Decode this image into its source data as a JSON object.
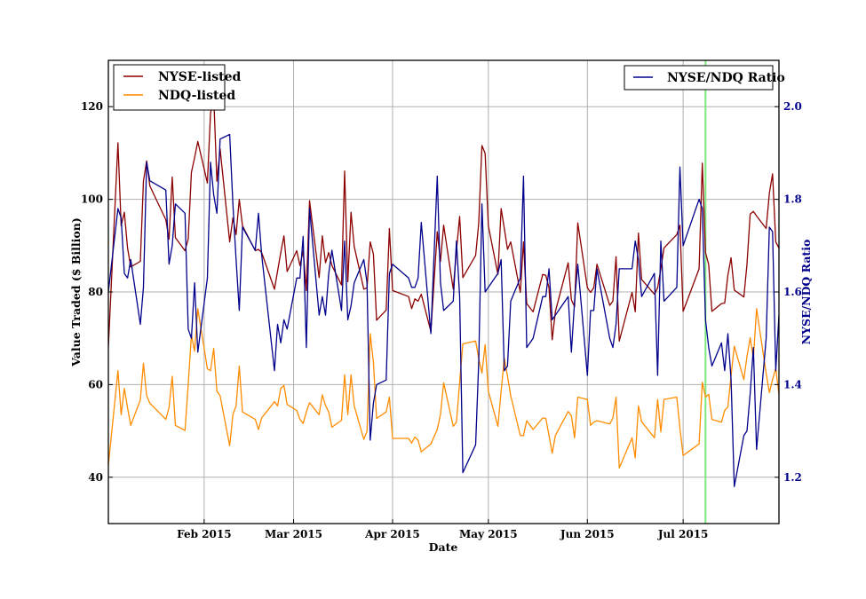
{
  "chart_data": {
    "type": "line",
    "title": "",
    "xlabel": "Date",
    "ylabel": "Value Traded ($ Billion)",
    "ylabel_right": "NYSE/NDQ Ratio",
    "xlim": [
      "2015-01-02",
      "2015-07-31"
    ],
    "ylim": [
      30,
      130
    ],
    "ylim_right": [
      1.1,
      2.1
    ],
    "grid": true,
    "x_ticks": [
      {
        "date": "2015-02-01",
        "label": "Feb 2015"
      },
      {
        "date": "2015-03-01",
        "label": "Mar 2015"
      },
      {
        "date": "2015-04-01",
        "label": "Apr 2015"
      },
      {
        "date": "2015-05-01",
        "label": "May 2015"
      },
      {
        "date": "2015-06-01",
        "label": "Jun 2015"
      },
      {
        "date": "2015-07-01",
        "label": "Jul 2015"
      }
    ],
    "y_ticks": [
      "40",
      "60",
      "80",
      "100",
      "120"
    ],
    "y_ticks_right": [
      "1.2",
      "1.4",
      "1.6",
      "1.8",
      "2.0"
    ],
    "vertical_marker": {
      "date": "2015-07-08",
      "color": "#7ee87e"
    },
    "legend_left": {
      "placement": "top-left",
      "entries": [
        "NYSE-listed",
        "NDQ-listed"
      ]
    },
    "legend_right": {
      "placement": "top-right",
      "entries": [
        "NYSE/NDQ Ratio"
      ]
    },
    "x": [
      "2015-01-02",
      "2015-01-05",
      "2015-01-06",
      "2015-01-07",
      "2015-01-08",
      "2015-01-09",
      "2015-01-12",
      "2015-01-13",
      "2015-01-14",
      "2015-01-15",
      "2015-01-20",
      "2015-01-21",
      "2015-01-22",
      "2015-01-23",
      "2015-01-26",
      "2015-01-27",
      "2015-01-28",
      "2015-01-29",
      "2015-01-30",
      "2015-02-02",
      "2015-02-03",
      "2015-02-04",
      "2015-02-05",
      "2015-02-06",
      "2015-02-09",
      "2015-02-10",
      "2015-02-11",
      "2015-02-12",
      "2015-02-13",
      "2015-02-17",
      "2015-02-18",
      "2015-02-19",
      "2015-02-23",
      "2015-02-24",
      "2015-02-25",
      "2015-02-26",
      "2015-02-27",
      "2015-03-02",
      "2015-03-03",
      "2015-03-04",
      "2015-03-05",
      "2015-03-06",
      "2015-03-09",
      "2015-03-10",
      "2015-03-11",
      "2015-03-12",
      "2015-03-13",
      "2015-03-16",
      "2015-03-17",
      "2015-03-18",
      "2015-03-19",
      "2015-03-20",
      "2015-03-23",
      "2015-03-24",
      "2015-03-25",
      "2015-03-26",
      "2015-03-27",
      "2015-03-30",
      "2015-03-31",
      "2015-04-01",
      "2015-04-06",
      "2015-04-07",
      "2015-04-08",
      "2015-04-09",
      "2015-04-10",
      "2015-04-13",
      "2015-04-15",
      "2015-04-16",
      "2015-04-17",
      "2015-04-20",
      "2015-04-21",
      "2015-04-22",
      "2015-04-23",
      "2015-04-27",
      "2015-04-28",
      "2015-04-29",
      "2015-04-30",
      "2015-05-01",
      "2015-05-04",
      "2015-05-05",
      "2015-05-06",
      "2015-05-07",
      "2015-05-08",
      "2015-05-11",
      "2015-05-12",
      "2015-05-13",
      "2015-05-15",
      "2015-05-18",
      "2015-05-19",
      "2015-05-20",
      "2015-05-21",
      "2015-05-22",
      "2015-05-26",
      "2015-05-27",
      "2015-05-28",
      "2015-05-29",
      "2015-06-01",
      "2015-06-02",
      "2015-06-03",
      "2015-06-04",
      "2015-06-08",
      "2015-06-09",
      "2015-06-10",
      "2015-06-11",
      "2015-06-15",
      "2015-06-16",
      "2015-06-17",
      "2015-06-18",
      "2015-06-22",
      "2015-06-23",
      "2015-06-24",
      "2015-06-25",
      "2015-06-29",
      "2015-06-30",
      "2015-07-01",
      "2015-07-06",
      "2015-07-07",
      "2015-07-08",
      "2015-07-09",
      "2015-07-10",
      "2015-07-13",
      "2015-07-14",
      "2015-07-15",
      "2015-07-16",
      "2015-07-17",
      "2015-07-20",
      "2015-07-21",
      "2015-07-22",
      "2015-07-23",
      "2015-07-24",
      "2015-07-27",
      "2015-07-28",
      "2015-07-29",
      "2015-07-30",
      "2015-07-31"
    ],
    "series": [
      {
        "name": "NYSE-listed",
        "axis": "left",
        "color": "#8b0000",
        "values": [
          68.1,
          112.2,
          94.3,
          97.2,
          89.5,
          85.4,
          86.6,
          103.9,
          108.3,
          102.9,
          95.6,
          91.4,
          104.8,
          91.7,
          88.9,
          91.4,
          105.8,
          109.0,
          112.5,
          103.5,
          118.5,
          122.4,
          103.9,
          110.9,
          90.8,
          96.0,
          92.4,
          100.0,
          94.3,
          88.9,
          89.2,
          88.5,
          80.6,
          84.5,
          88.5,
          92.1,
          84.4,
          88.9,
          85.7,
          88.9,
          80.3,
          99.7,
          83.1,
          92.1,
          86.3,
          88.5,
          85.7,
          81.5,
          106.1,
          82.2,
          97.2,
          89.8,
          80.6,
          80.9,
          90.8,
          88.2,
          73.9,
          76.1,
          93.7,
          80.3,
          79.0,
          76.4,
          78.5,
          78.0,
          79.5,
          71.5,
          93.0,
          86.6,
          94.4,
          80.6,
          88.9,
          96.3,
          83.1,
          87.9,
          94.9,
          111.6,
          109.9,
          94.3,
          83.8,
          98.0,
          93.7,
          89.2,
          90.8,
          79.9,
          90.8,
          77.5,
          75.7,
          83.8,
          83.6,
          80.9,
          69.7,
          75.8,
          86.3,
          78.3,
          76.8,
          94.9,
          80.9,
          79.9,
          80.9,
          86.0,
          77.1,
          78.0,
          87.6,
          69.4,
          79.9,
          75.7,
          92.7,
          82.7,
          79.5,
          80.9,
          85.0,
          89.5,
          92.4,
          94.4,
          75.8,
          85.0,
          107.8,
          88.5,
          85.9,
          75.8,
          77.5,
          77.6,
          83.6,
          87.4,
          80.4,
          78.9,
          86.0,
          96.8,
          97.4,
          96.4,
          93.7,
          101.3,
          105.5,
          90.8,
          89.5
        ]
      },
      {
        "name": "NDQ-listed",
        "axis": "left",
        "color": "#ff8c00",
        "values": [
          42.6,
          63.0,
          53.5,
          59.2,
          55.0,
          51.2,
          56.7,
          64.6,
          57.6,
          56.0,
          52.5,
          55.0,
          61.8,
          51.2,
          50.1,
          60.0,
          70.7,
          67.2,
          76.4,
          63.4,
          63.0,
          67.8,
          58.6,
          57.6,
          46.8,
          53.5,
          55.4,
          64.0,
          54.1,
          52.5,
          50.3,
          52.8,
          56.3,
          55.4,
          59.2,
          59.8,
          55.7,
          54.4,
          52.5,
          51.6,
          54.1,
          56.1,
          53.5,
          57.8,
          55.5,
          54.1,
          50.8,
          52.3,
          62.1,
          53.5,
          62.1,
          55.4,
          48.2,
          49.9,
          71.0,
          64.9,
          52.7,
          54.1,
          57.3,
          48.4,
          48.4,
          47.4,
          48.7,
          48.0,
          45.5,
          47.2,
          50.3,
          53.5,
          60.4,
          51.0,
          51.9,
          60.5,
          68.8,
          69.4,
          65.6,
          62.5,
          68.6,
          58.6,
          51.0,
          58.6,
          65.7,
          61.8,
          57.6,
          49.0,
          49.0,
          52.2,
          50.3,
          52.8,
          52.7,
          49.0,
          45.2,
          49.0,
          54.2,
          53.3,
          48.5,
          57.3,
          56.8,
          51.2,
          51.9,
          52.2,
          51.5,
          52.8,
          57.3,
          42.0,
          48.5,
          44.2,
          55.4,
          52.0,
          48.5,
          56.8,
          49.8,
          56.8,
          57.3,
          50.6,
          44.7,
          47.2,
          60.5,
          57.3,
          57.9,
          52.5,
          51.9,
          54.4,
          55.2,
          62.0,
          68.3,
          61.1,
          66.1,
          70.1,
          65.6,
          76.4,
          62.4,
          58.3,
          61.1,
          63.5,
          57.9
        ]
      },
      {
        "name": "NYSE/NDQ Ratio",
        "axis": "right",
        "color": "#00008b",
        "values": [
          1.6,
          1.78,
          1.76,
          1.64,
          1.63,
          1.67,
          1.53,
          1.61,
          1.88,
          1.84,
          1.82,
          1.66,
          1.7,
          1.79,
          1.77,
          1.52,
          1.5,
          1.62,
          1.47,
          1.63,
          1.88,
          1.81,
          1.77,
          1.93,
          1.94,
          1.79,
          1.67,
          1.56,
          1.74,
          1.69,
          1.77,
          1.68,
          1.43,
          1.53,
          1.49,
          1.54,
          1.52,
          1.63,
          1.63,
          1.72,
          1.48,
          1.78,
          1.55,
          1.59,
          1.55,
          1.64,
          1.69,
          1.56,
          1.71,
          1.54,
          1.57,
          1.62,
          1.67,
          1.62,
          1.28,
          1.36,
          1.4,
          1.41,
          1.64,
          1.66,
          1.63,
          1.61,
          1.61,
          1.63,
          1.75,
          1.51,
          1.85,
          1.62,
          1.56,
          1.58,
          1.71,
          1.59,
          1.21,
          1.27,
          1.45,
          1.79,
          1.6,
          1.61,
          1.64,
          1.67,
          1.43,
          1.44,
          1.58,
          1.63,
          1.85,
          1.48,
          1.5,
          1.59,
          1.59,
          1.65,
          1.54,
          1.55,
          1.59,
          1.47,
          1.58,
          1.66,
          1.42,
          1.56,
          1.56,
          1.65,
          1.5,
          1.48,
          1.53,
          1.65,
          1.65,
          1.71,
          1.67,
          1.59,
          1.64,
          1.42,
          1.71,
          1.58,
          1.61,
          1.87,
          1.7,
          1.8,
          1.78,
          1.54,
          1.48,
          1.44,
          1.49,
          1.43,
          1.51,
          1.41,
          1.18,
          1.29,
          1.3,
          1.38,
          1.48,
          1.26,
          1.5,
          1.74,
          1.73,
          1.43,
          1.55
        ]
      }
    ]
  }
}
